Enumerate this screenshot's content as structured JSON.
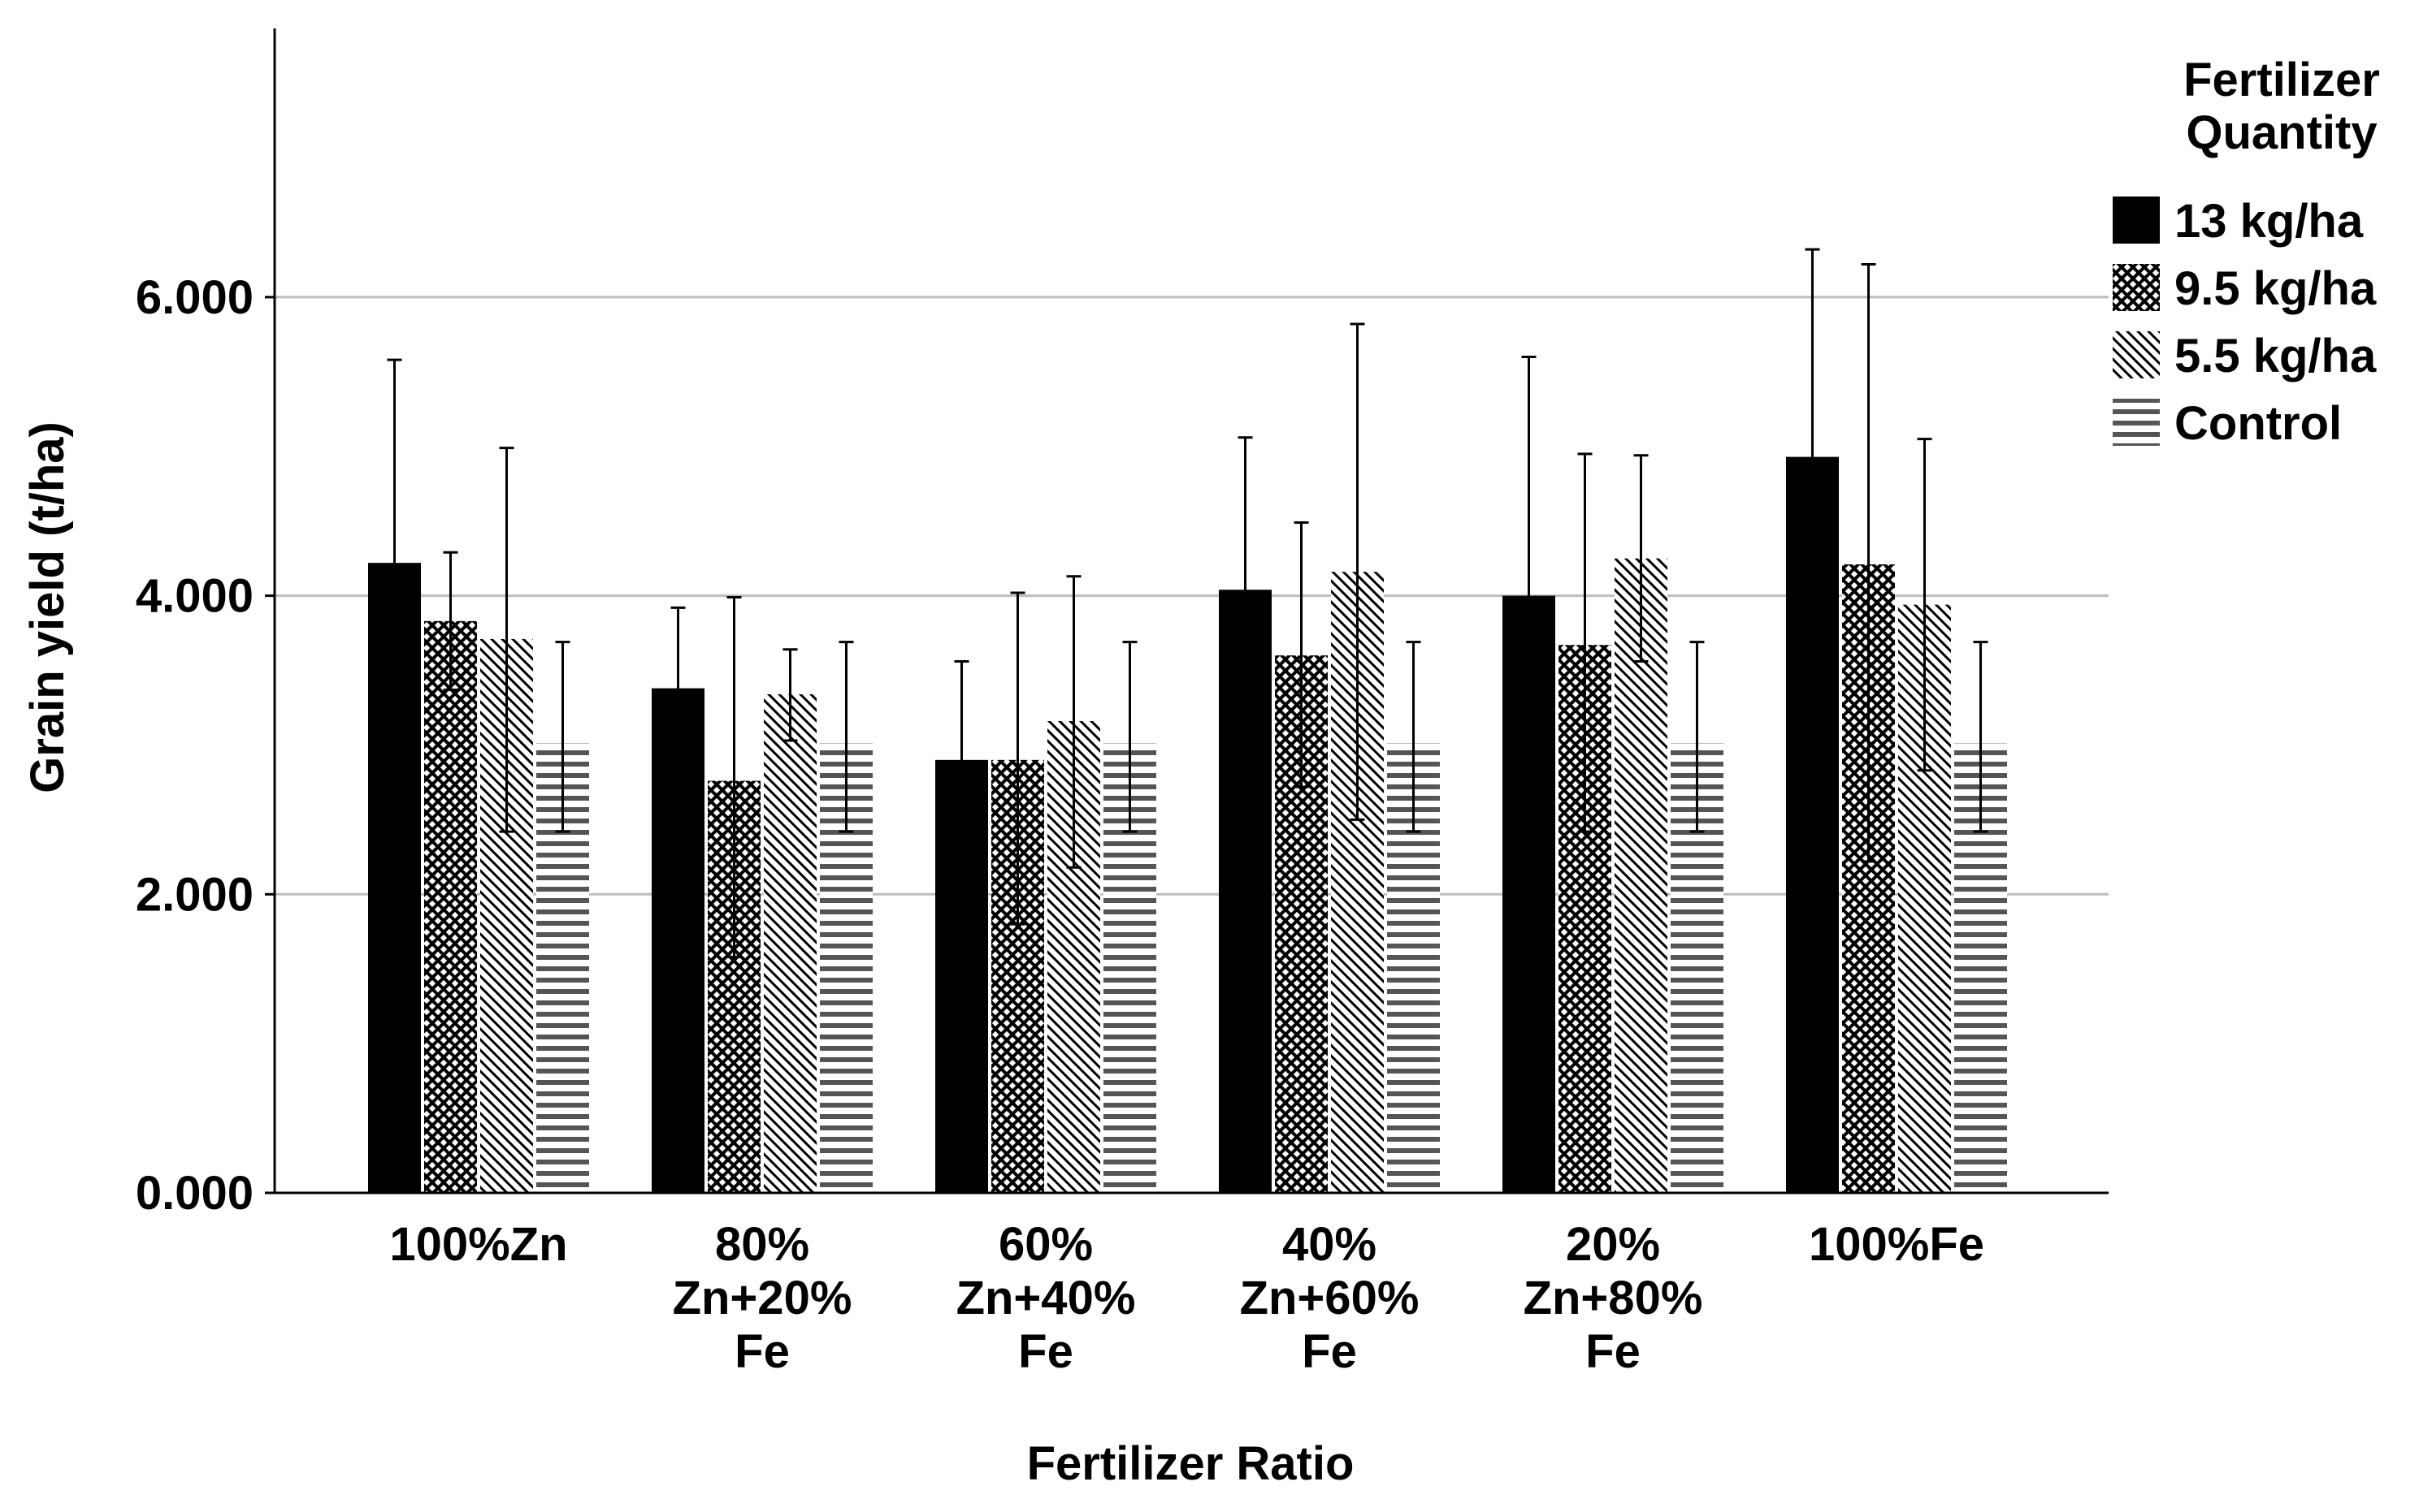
{
  "chart_data": {
    "type": "bar",
    "title": "",
    "xlabel": "Fertilizer Ratio",
    "ylabel": "Grain yield (t/ha)",
    "ylim": [
      0,
      7.8
    ],
    "yticks": [
      0,
      2,
      4,
      6
    ],
    "ytick_labels": [
      "0.000",
      "2.000",
      "4.000",
      "6.000"
    ],
    "grid": true,
    "legend_title": [
      "Fertilizer",
      "Quantity"
    ],
    "legend_position": "top-right",
    "categories": [
      [
        "100%Zn"
      ],
      [
        "80%",
        "Zn+20%",
        "Fe"
      ],
      [
        "60%",
        "Zn+40%",
        "Fe"
      ],
      [
        "40%",
        "Zn+60%",
        "Fe"
      ],
      [
        "20%",
        "Zn+80%",
        "Fe"
      ],
      [
        "100%Fe"
      ]
    ],
    "series": [
      {
        "name": "13 kg/ha",
        "pattern": "solid",
        "values": [
          4.22,
          3.38,
          2.9,
          4.04,
          4.0,
          4.93
        ],
        "error_low": [
          2.85,
          2.85,
          2.25,
          3.0,
          2.4,
          3.55
        ],
        "error_high": [
          5.58,
          3.92,
          3.56,
          5.06,
          5.6,
          6.32
        ]
      },
      {
        "name": "9.5 kg/ha",
        "pattern": "crosshatch",
        "values": [
          3.83,
          2.76,
          2.9,
          3.6,
          3.67,
          4.21
        ],
        "error_low": [
          3.37,
          1.58,
          1.8,
          2.72,
          2.42,
          2.22
        ],
        "error_high": [
          4.29,
          3.99,
          4.02,
          4.49,
          4.95,
          6.22
        ]
      },
      {
        "name": "5.5 kg/ha",
        "pattern": "diagonal",
        "values": [
          3.71,
          3.34,
          3.16,
          4.16,
          4.25,
          3.94
        ],
        "error_low": [
          2.42,
          3.03,
          2.18,
          2.5,
          3.56,
          2.83
        ],
        "error_high": [
          4.99,
          3.64,
          4.13,
          5.82,
          4.94,
          5.05
        ]
      },
      {
        "name": "Control",
        "pattern": "horizontal",
        "values": [
          3.01,
          3.01,
          3.01,
          3.01,
          3.01,
          3.01
        ],
        "error_low": [
          2.42,
          2.42,
          2.42,
          2.42,
          2.42,
          2.42
        ],
        "error_high": [
          3.69,
          3.69,
          3.69,
          3.69,
          3.69,
          3.69
        ]
      }
    ]
  }
}
